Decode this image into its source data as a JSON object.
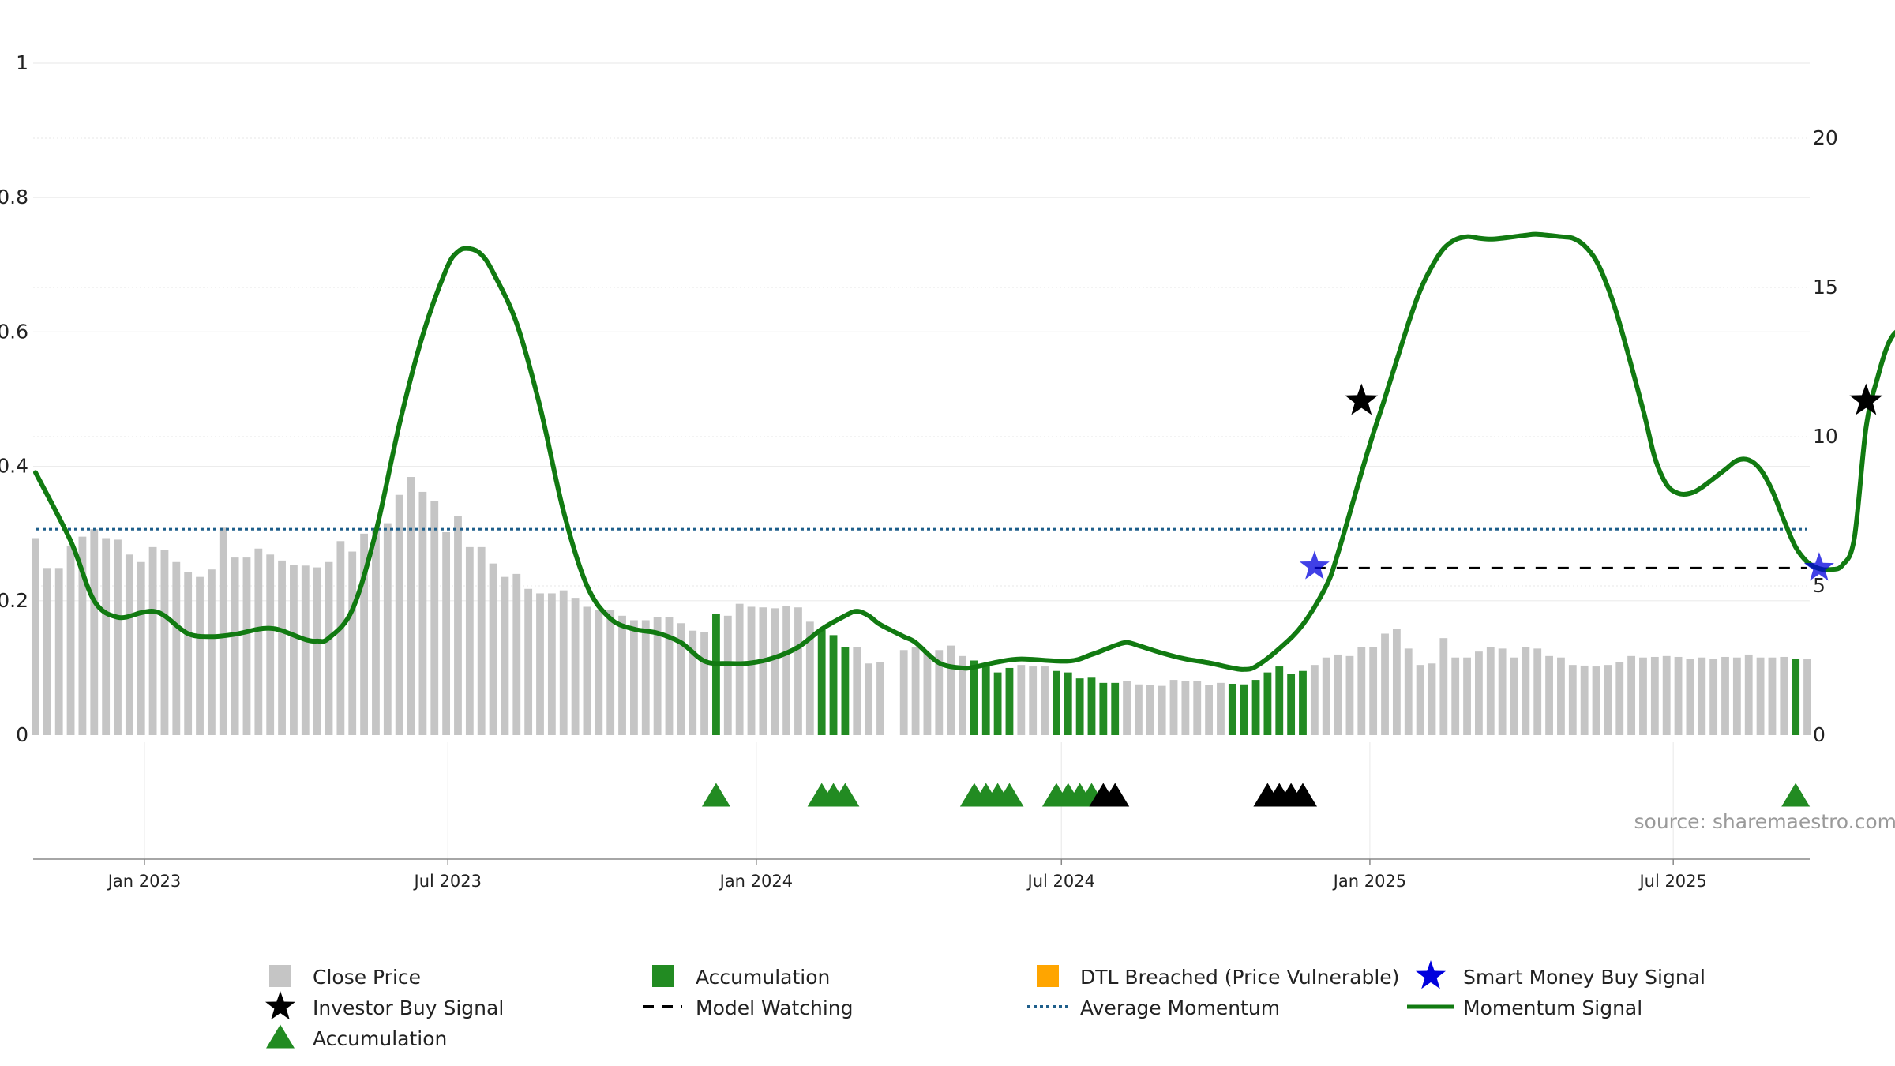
{
  "chart_data": {
    "type": "bar",
    "x_start": "2022-10-28",
    "x_step_days": 7,
    "x_ticks": [
      "Jan 2023",
      "Jul 2023",
      "Jan 2024",
      "Jul 2024",
      "Jan 2025",
      "Jul 2025"
    ],
    "x_tick_dates": [
      "2023-01-01",
      "2023-07-01",
      "2024-01-01",
      "2024-07-01",
      "2025-01-01",
      "2025-07-01"
    ],
    "left_axis": {
      "range": [
        0,
        1
      ],
      "ticks": [
        0,
        0.2,
        0.4,
        0.6,
        0.8,
        1
      ],
      "tick_labels": [
        "0",
        "0.2",
        "0.4",
        "0.6",
        "0.8",
        "1"
      ]
    },
    "right_axis": {
      "range": [
        0,
        22.5
      ],
      "ticks": [
        0,
        5,
        10,
        15,
        20
      ],
      "tick_labels": [
        "0",
        "5",
        "10",
        "15",
        "20"
      ]
    },
    "grid": true,
    "source_label": "source: sharemaestro.com",
    "close_price": [
      6.6,
      5.6,
      5.6,
      6.35,
      6.65,
      6.9,
      6.6,
      6.55,
      6.05,
      5.8,
      6.3,
      6.2,
      5.8,
      5.45,
      5.3,
      5.55,
      6.95,
      5.95,
      5.95,
      6.25,
      6.05,
      5.85,
      5.7,
      5.68,
      5.62,
      5.8,
      6.5,
      6.15,
      6.75,
      6.85,
      7.1,
      8.05,
      8.65,
      8.15,
      7.85,
      6.8,
      7.35,
      6.3,
      6.3,
      5.75,
      5.3,
      5.4,
      4.9,
      4.75,
      4.75,
      4.85,
      4.6,
      4.3,
      4.2,
      4.2,
      4.0,
      3.85,
      3.85,
      3.95,
      3.95,
      3.75,
      3.5,
      3.45,
      4.05,
      4.0,
      4.4,
      4.3,
      4.28,
      4.25,
      4.32,
      4.28,
      3.8,
      3.55,
      3.35,
      2.95,
      2.95,
      2.4,
      2.45,
      0,
      2.85,
      2.95,
      2.75,
      2.85,
      3.0,
      2.65,
      2.5,
      2.35,
      2.1,
      2.25,
      2.35,
      2.3,
      2.3,
      2.15,
      2.1,
      1.9,
      1.95,
      1.75,
      1.75,
      1.8,
      1.7,
      1.67,
      1.65,
      1.85,
      1.8,
      1.8,
      1.68,
      1.75,
      1.72,
      1.7,
      1.85,
      2.1,
      2.3,
      2.05,
      2.15,
      2.35,
      2.6,
      2.7,
      2.65,
      2.95,
      2.95,
      3.4,
      3.55,
      2.9,
      2.35,
      2.4,
      3.25,
      2.6,
      2.6,
      2.8,
      2.95,
      2.9,
      2.6,
      2.95,
      2.9,
      2.65,
      2.6,
      2.35,
      2.33,
      2.3,
      2.35,
      2.45,
      2.65,
      2.6,
      2.62,
      2.65,
      2.62,
      2.55,
      2.6,
      2.55,
      2.62,
      2.6,
      2.7,
      2.6,
      2.6,
      2.62,
      2.55,
      2.55
    ],
    "accumulation_bar_indices": [
      58,
      67,
      68,
      69,
      80,
      81,
      82,
      83,
      87,
      88,
      89,
      90,
      91,
      92,
      102,
      103,
      104,
      105,
      106,
      107,
      108,
      150
    ],
    "accumulation_markers": [
      58,
      67,
      68,
      69,
      80,
      81,
      82,
      83,
      87,
      88,
      89,
      90,
      150
    ],
    "accumulation_markers_black": [
      91,
      92,
      105,
      106,
      107,
      108
    ],
    "model_watching_start_index": 109,
    "model_watching_level": 5.6,
    "average_momentum": 6.9,
    "momentum_signal": [
      [
        0,
        8.8
      ],
      [
        3,
        6.5
      ],
      [
        5,
        4.5
      ],
      [
        7,
        3.95
      ],
      [
        9,
        4.1
      ],
      [
        10,
        4.15
      ],
      [
        11,
        4.0
      ],
      [
        13,
        3.4
      ],
      [
        15,
        3.3
      ],
      [
        17,
        3.38
      ],
      [
        19,
        3.55
      ],
      [
        20,
        3.58
      ],
      [
        21,
        3.5
      ],
      [
        23,
        3.2
      ],
      [
        24,
        3.15
      ],
      [
        25,
        3.25
      ],
      [
        27,
        4.2
      ],
      [
        29,
        6.8
      ],
      [
        31,
        10.4
      ],
      [
        33,
        13.4
      ],
      [
        35,
        15.6
      ],
      [
        36,
        16.2
      ],
      [
        37,
        16.3
      ],
      [
        38,
        16.1
      ],
      [
        39,
        15.5
      ],
      [
        41,
        13.8
      ],
      [
        43,
        11.0
      ],
      [
        45,
        7.5
      ],
      [
        47,
        5.0
      ],
      [
        49,
        3.9
      ],
      [
        51,
        3.55
      ],
      [
        53,
        3.42
      ],
      [
        55,
        3.1
      ],
      [
        57,
        2.48
      ],
      [
        59,
        2.4
      ],
      [
        61,
        2.42
      ],
      [
        63,
        2.6
      ],
      [
        65,
        2.95
      ],
      [
        67,
        3.55
      ],
      [
        69,
        4.0
      ],
      [
        70,
        4.15
      ],
      [
        71,
        4.0
      ],
      [
        72,
        3.7
      ],
      [
        74,
        3.3
      ],
      [
        75,
        3.1
      ],
      [
        77,
        2.42
      ],
      [
        79,
        2.25
      ],
      [
        80,
        2.28
      ],
      [
        82,
        2.45
      ],
      [
        84,
        2.55
      ],
      [
        88,
        2.48
      ],
      [
        90,
        2.7
      ],
      [
        92,
        3.0
      ],
      [
        93,
        3.1
      ],
      [
        94,
        3.0
      ],
      [
        96,
        2.75
      ],
      [
        98,
        2.55
      ],
      [
        100,
        2.42
      ],
      [
        102,
        2.25
      ],
      [
        103,
        2.2
      ],
      [
        104,
        2.3
      ],
      [
        106,
        2.9
      ],
      [
        108,
        3.7
      ],
      [
        110,
        5.0
      ],
      [
        111,
        6.1
      ],
      [
        113,
        8.8
      ],
      [
        114,
        10.1
      ],
      [
        115,
        11.3
      ],
      [
        117,
        13.8
      ],
      [
        118,
        14.9
      ],
      [
        119,
        15.7
      ],
      [
        120,
        16.3
      ],
      [
        121,
        16.6
      ],
      [
        122,
        16.7
      ],
      [
        123,
        16.65
      ],
      [
        124,
        16.62
      ],
      [
        125,
        16.65
      ],
      [
        127,
        16.75
      ],
      [
        128,
        16.78
      ],
      [
        130,
        16.7
      ],
      [
        131,
        16.65
      ],
      [
        132,
        16.4
      ],
      [
        133,
        15.9
      ],
      [
        134,
        15.0
      ],
      [
        135,
        13.8
      ],
      [
        137,
        10.9
      ],
      [
        138,
        9.3
      ],
      [
        139,
        8.4
      ],
      [
        140,
        8.1
      ],
      [
        141,
        8.1
      ],
      [
        142,
        8.3
      ],
      [
        144,
        8.9
      ],
      [
        145,
        9.2
      ],
      [
        146,
        9.22
      ],
      [
        147,
        8.9
      ],
      [
        148,
        8.2
      ],
      [
        149,
        7.2
      ],
      [
        150,
        6.3
      ],
      [
        151,
        5.8
      ],
      [
        152,
        5.58
      ],
      [
        153,
        5.55
      ],
      [
        154,
        5.7
      ],
      [
        155,
        6.6
      ],
      [
        156,
        10.3
      ],
      [
        157,
        12.0
      ],
      [
        158,
        13.2
      ],
      [
        159,
        13.6
      ],
      [
        160,
        13.4
      ]
    ],
    "smart_money_buy_signals": [
      {
        "index": 109,
        "value": 5.65
      },
      {
        "index": 152,
        "value": 5.6
      }
    ],
    "investor_buy_signals": [
      {
        "index": 113,
        "value": 11.2
      },
      {
        "index": 156,
        "value": 11.2
      }
    ],
    "colors": {
      "close_price": "#c5c5c5",
      "accumulation": "#228b22",
      "dtl": "#ffa500",
      "smart_money": "#0000dd",
      "investor": "#000000",
      "average_momentum": "#1f5f8b",
      "momentum": "#117a11"
    }
  },
  "legend": {
    "items": [
      {
        "label": "Close Price",
        "symbol": "gray-square"
      },
      {
        "label": "Accumulation",
        "symbol": "green-square"
      },
      {
        "label": "DTL Breached (Price Vulnerable)",
        "symbol": "orange-square"
      },
      {
        "label": "Smart Money Buy Signal",
        "symbol": "blue-star"
      },
      {
        "label": "Investor Buy Signal",
        "symbol": "black-star"
      },
      {
        "label": "Model Watching",
        "symbol": "black-dashed-line"
      },
      {
        "label": "Average Momentum",
        "symbol": "blue-dotted-line"
      },
      {
        "label": "Momentum Signal",
        "symbol": "green-line"
      },
      {
        "label": "Accumulation",
        "symbol": "green-triangle"
      }
    ]
  }
}
